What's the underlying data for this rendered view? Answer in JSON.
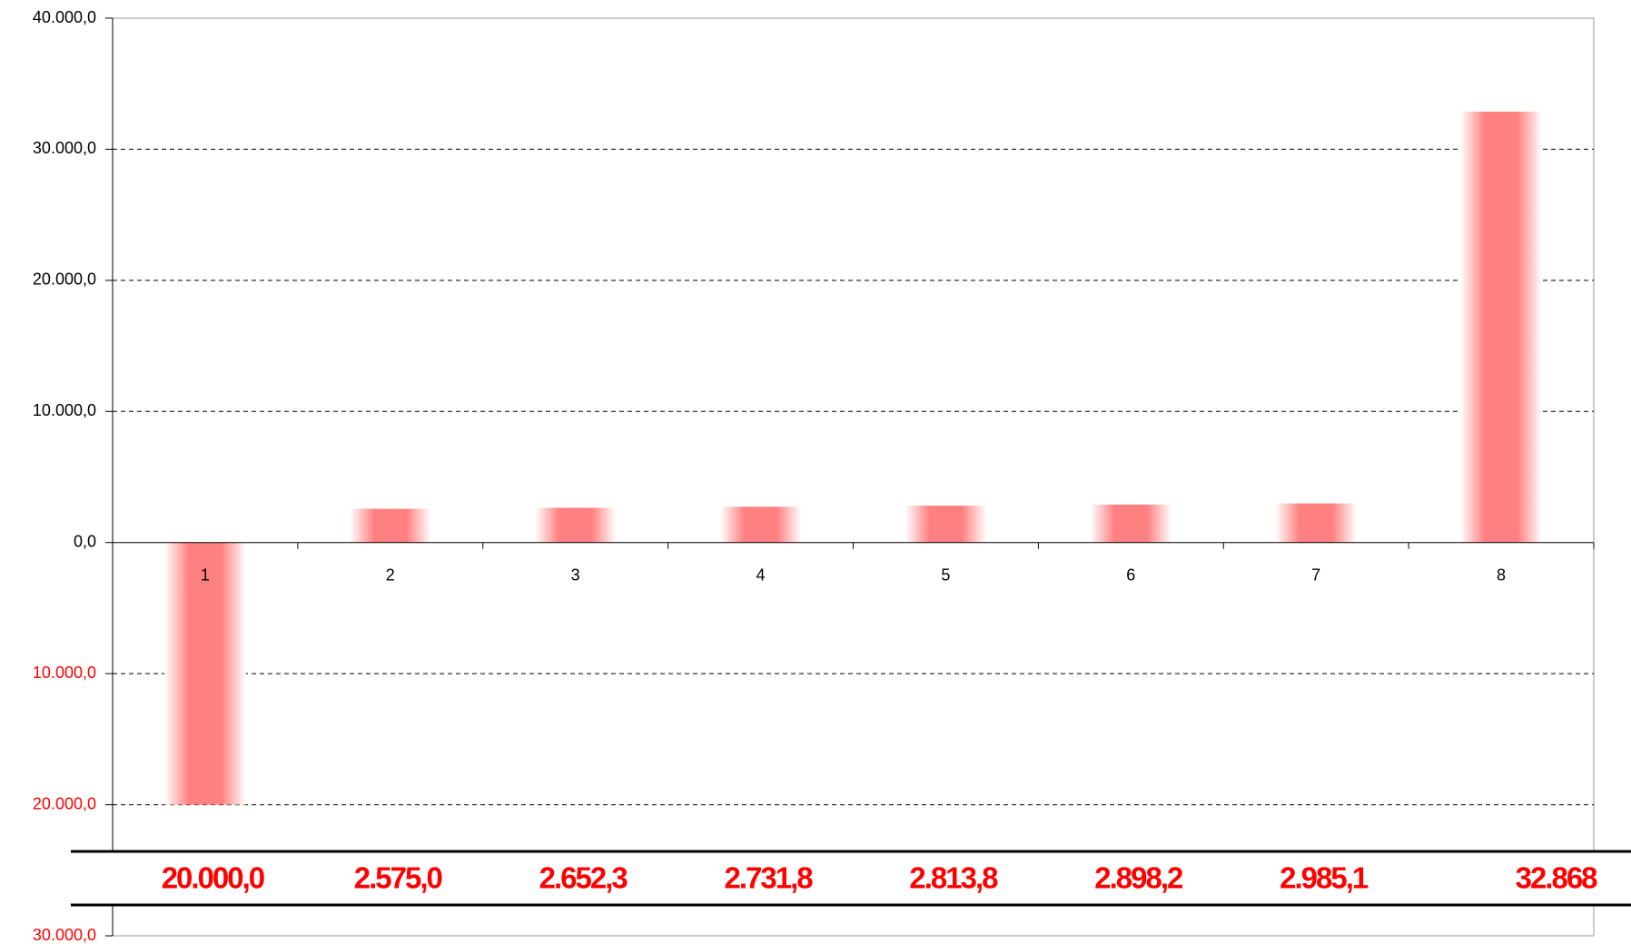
{
  "chart_data": {
    "type": "bar",
    "categories": [
      "1",
      "2",
      "3",
      "4",
      "5",
      "6",
      "7",
      "8"
    ],
    "values": [
      -20000,
      2575,
      2652.3,
      2731.8,
      2813.8,
      2898.2,
      2985.1,
      32868
    ],
    "value_labels": [
      "20.000,0",
      "2.575,0",
      "2.652,3",
      "2.731,8",
      "2.813,8",
      "2.898,2",
      "2.985,1",
      "32.868"
    ],
    "color": "#ff8080",
    "value_label_color": "#ff0000",
    "negative_tick_color": "#ff0000",
    "ylim": [
      -30000,
      40000
    ],
    "yticks": [
      {
        "value": 40000,
        "label": "40.000,0"
      },
      {
        "value": 30000,
        "label": "30.000,0"
      },
      {
        "value": 20000,
        "label": "20.000,0"
      },
      {
        "value": 10000,
        "label": "10.000,0"
      },
      {
        "value": 0,
        "label": "0,0"
      },
      {
        "value": -10000,
        "label": "10.000,0"
      },
      {
        "value": -20000,
        "label": "20.000,0"
      },
      {
        "value": -30000,
        "label": "30.000,0"
      }
    ],
    "grid": true
  }
}
